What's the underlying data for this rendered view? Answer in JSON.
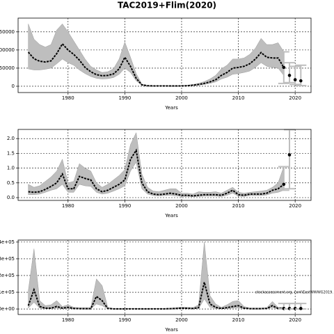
{
  "chart_data": [
    {
      "type": "line",
      "title": "TAC2019+Flim(2020)",
      "xlabel": "Years",
      "x": [
        1973,
        1974,
        1975,
        1976,
        1977,
        1978,
        1979,
        1980,
        1981,
        1982,
        1983,
        1984,
        1985,
        1986,
        1987,
        1988,
        1989,
        1990,
        1991,
        1992,
        1993,
        1994,
        1995,
        1996,
        1997,
        1998,
        1999,
        2000,
        2001,
        2002,
        2003,
        2004,
        2005,
        2006,
        2007,
        2008,
        2009,
        2010,
        2011,
        2012,
        2013,
        2014,
        2015,
        2016,
        2017,
        2018
      ],
      "values": [
        94000,
        76000,
        69000,
        67000,
        70000,
        90000,
        117000,
        100000,
        88000,
        72000,
        52000,
        40000,
        32000,
        29000,
        30000,
        34000,
        48000,
        80000,
        55000,
        22000,
        4000,
        1500,
        1000,
        1000,
        1000,
        1000,
        1000,
        1000,
        1500,
        3000,
        5000,
        8000,
        12000,
        18000,
        30000,
        38000,
        50000,
        52000,
        55000,
        62000,
        75000,
        93000,
        80000,
        78000,
        78000,
        52000
      ],
      "upper": [
        172000,
        130000,
        115000,
        108000,
        115000,
        155000,
        172000,
        150000,
        125000,
        100000,
        75000,
        55000,
        45000,
        38000,
        40000,
        48000,
        75000,
        122000,
        80000,
        35000,
        6000,
        2500,
        2000,
        2000,
        2000,
        2000,
        2000,
        2000,
        3000,
        5000,
        8000,
        13000,
        20000,
        30000,
        48000,
        58000,
        75000,
        75000,
        78000,
        88000,
        105000,
        132000,
        115000,
        115000,
        120000,
        95000
      ],
      "lower": [
        48000,
        45000,
        45000,
        47000,
        50000,
        62000,
        75000,
        65000,
        58000,
        45000,
        35000,
        27000,
        22000,
        20000,
        21000,
        24000,
        33000,
        50000,
        38000,
        15000,
        2500,
        800,
        500,
        500,
        500,
        500,
        500,
        500,
        800,
        1500,
        3000,
        5000,
        8000,
        12000,
        20000,
        25000,
        33000,
        35000,
        38000,
        42000,
        52000,
        65000,
        55000,
        52000,
        50000,
        30000
      ],
      "proj": {
        "x": [
          2018,
          2019,
          2020,
          2021
        ],
        "values": [
          52000,
          30000,
          18000,
          15000
        ],
        "lower": [
          8000,
          10000,
          5000,
          2000
        ],
        "upper": [
          95000,
          65000,
          55000,
          58000
        ]
      },
      "color": "#000000",
      "band_color": "#bebebe",
      "proj_color": "#bebebe",
      "xlim": [
        1971.2,
        2022.8
      ],
      "xticks": [
        1980,
        1990,
        2000,
        2010,
        2020
      ],
      "ylim": [
        -17300,
        188000
      ],
      "yticks": [
        0,
        50000,
        100000,
        150000
      ],
      "grid": true
    },
    {
      "type": "line",
      "xlabel": "Years",
      "x": [
        1973,
        1974,
        1975,
        1976,
        1977,
        1978,
        1979,
        1980,
        1981,
        1982,
        1983,
        1984,
        1985,
        1986,
        1987,
        1988,
        1989,
        1990,
        1991,
        1992,
        1993,
        1994,
        1995,
        1996,
        1997,
        1998,
        1999,
        2000,
        2001,
        2002,
        2003,
        2004,
        2005,
        2006,
        2007,
        2008,
        2009,
        2010,
        2011,
        2012,
        2013,
        2014,
        2015,
        2016,
        2017,
        2018
      ],
      "values": [
        0.2,
        0.18,
        0.2,
        0.28,
        0.38,
        0.5,
        0.8,
        0.3,
        0.3,
        0.72,
        0.65,
        0.6,
        0.3,
        0.2,
        0.25,
        0.35,
        0.45,
        0.6,
        1.3,
        1.6,
        0.5,
        0.2,
        0.12,
        0.1,
        0.12,
        0.15,
        0.12,
        0.08,
        0.08,
        0.06,
        0.08,
        0.1,
        0.1,
        0.1,
        0.08,
        0.15,
        0.25,
        0.1,
        0.08,
        0.12,
        0.12,
        0.12,
        0.15,
        0.25,
        0.3,
        0.45
      ],
      "upper": [
        0.45,
        0.35,
        0.4,
        0.55,
        0.7,
        0.9,
        1.3,
        0.5,
        0.55,
        1.15,
        1.0,
        0.9,
        0.5,
        0.35,
        0.45,
        0.6,
        0.75,
        0.95,
        1.8,
        2.2,
        0.8,
        0.35,
        0.22,
        0.2,
        0.25,
        0.3,
        0.3,
        0.15,
        0.15,
        0.12,
        0.2,
        0.18,
        0.18,
        0.2,
        0.15,
        0.25,
        0.35,
        0.18,
        0.15,
        0.18,
        0.2,
        0.22,
        0.25,
        0.35,
        0.5,
        1.05
      ],
      "lower": [
        0.1,
        0.1,
        0.12,
        0.18,
        0.25,
        0.3,
        0.45,
        0.18,
        0.18,
        0.45,
        0.4,
        0.38,
        0.18,
        0.12,
        0.15,
        0.22,
        0.3,
        0.4,
        0.9,
        1.2,
        0.3,
        0.12,
        0.07,
        0.06,
        0.07,
        0.08,
        0.06,
        0.04,
        0.04,
        0.03,
        0.04,
        0.05,
        0.05,
        0.05,
        0.04,
        0.08,
        0.15,
        0.05,
        0.04,
        0.07,
        0.07,
        0.07,
        0.09,
        0.15,
        0.18,
        0.25
      ],
      "proj": {
        "x": [
          2018,
          2019
        ],
        "values": [
          0.45,
          1.45
        ],
        "lower": [
          0.25,
          0.3
        ],
        "upper": [
          1.05,
          2.3
        ]
      },
      "color": "#000000",
      "band_color": "#bebebe",
      "proj_color": "#bebebe",
      "xlim": [
        1971.2,
        2022.8
      ],
      "xticks": [
        1980,
        1990,
        2000,
        2010,
        2020
      ],
      "ylim": [
        -0.094,
        2.31
      ],
      "yticks": [
        {
          "value": 0,
          "label": "0.0"
        },
        {
          "value": 0.5,
          "label": "0.5"
        },
        {
          "value": 1,
          "label": "1.0"
        },
        {
          "value": 1.5,
          "label": "1.5"
        },
        {
          "value": 2,
          "label": "2.0"
        }
      ],
      "grid": true
    },
    {
      "type": "line",
      "xlabel": "Years",
      "annotation": "stockassessment.org, conf:EastWWWG2019.",
      "x": [
        1973,
        1974,
        1975,
        1976,
        1977,
        1978,
        1979,
        1980,
        1981,
        1982,
        1983,
        1984,
        1985,
        1986,
        1987,
        1988,
        1989,
        1990,
        1991,
        1992,
        1993,
        1994,
        1995,
        1996,
        1997,
        1998,
        1999,
        2000,
        2001,
        2002,
        2003,
        2004,
        2005,
        2006,
        2007,
        2008,
        2009,
        2010,
        2011,
        2012,
        2013,
        2014,
        2015,
        2016,
        2017,
        2018
      ],
      "values": [
        20000,
        115000,
        15000,
        5000,
        5000,
        15000,
        5000,
        10000,
        3000,
        2000,
        2000,
        2000,
        75000,
        50000,
        3000,
        1000,
        1000,
        1000,
        1000,
        1000,
        1000,
        1000,
        1000,
        1000,
        1000,
        2000,
        3000,
        5000,
        4000,
        3000,
        8000,
        160000,
        30000,
        10000,
        3000,
        8000,
        15000,
        20000,
        5000,
        2000,
        2000,
        2000,
        3000,
        20000,
        3000,
        3000
      ],
      "upper": [
        110000,
        360000,
        50000,
        20000,
        25000,
        50000,
        15000,
        25000,
        10000,
        8000,
        8000,
        8000,
        180000,
        140000,
        10000,
        3000,
        3000,
        3000,
        3000,
        3000,
        3000,
        3000,
        3000,
        3000,
        3000,
        5000,
        8000,
        12000,
        10000,
        8000,
        25000,
        400000,
        80000,
        30000,
        10000,
        25000,
        45000,
        50000,
        15000,
        6000,
        6000,
        6000,
        8000,
        45000,
        10000,
        10000
      ],
      "lower": [
        5000,
        40000,
        5000,
        1500,
        1500,
        5000,
        1500,
        3000,
        800,
        500,
        500,
        500,
        30000,
        20000,
        800,
        300,
        300,
        300,
        300,
        300,
        300,
        300,
        300,
        300,
        300,
        500,
        800,
        1500,
        1200,
        800,
        2500,
        60000,
        10000,
        3000,
        800,
        2500,
        5000,
        7000,
        1500,
        500,
        500,
        500,
        800,
        8000,
        800,
        800
      ],
      "proj": {
        "x": [
          2018,
          2019,
          2020,
          2021
        ],
        "values": [
          3000,
          3000,
          3000,
          3000
        ],
        "lower": [
          500,
          500,
          500,
          500
        ],
        "upper": [
          33000,
          33000,
          33000,
          33000
        ]
      },
      "color": "#000000",
      "band_color": "#bebebe",
      "proj_color": "#bebebe",
      "xlim": [
        1971.2,
        2022.8
      ],
      "xticks": [
        1980,
        1990,
        2000,
        2010,
        2020
      ],
      "ylim": [
        -33000,
        412000
      ],
      "yticks": [
        {
          "value": 0,
          "label": "0e+00"
        },
        {
          "value": 100000,
          "label": "1e+05"
        },
        {
          "value": 200000,
          "label": "2e+05"
        },
        {
          "value": 300000,
          "label": "3e+05"
        },
        {
          "value": 400000,
          "label": "4e+05"
        }
      ],
      "grid": true
    }
  ]
}
